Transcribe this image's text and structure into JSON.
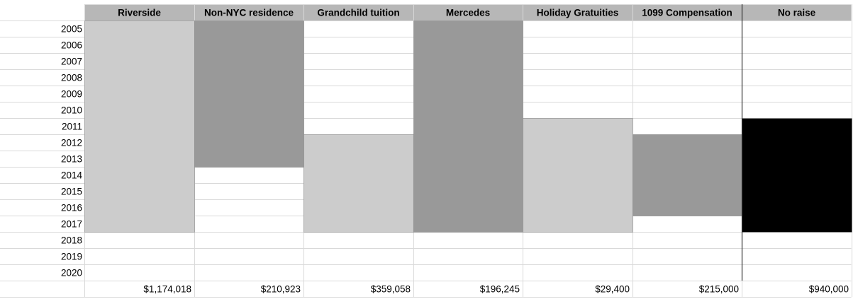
{
  "chart_data": {
    "type": "table",
    "years": [
      "2005",
      "2006",
      "2007",
      "2008",
      "2009",
      "2010",
      "2011",
      "2012",
      "2013",
      "2014",
      "2015",
      "2016",
      "2017",
      "2018",
      "2019",
      "2020"
    ],
    "columns": [
      {
        "label": "Riverside",
        "total": "$1,174,018",
        "start": 2005,
        "end": 2017,
        "color": "#cccccc"
      },
      {
        "label": "Non-NYC residence",
        "total": "$210,923",
        "start": 2005,
        "end": 2013,
        "color": "#999999"
      },
      {
        "label": "Grandchild tuition",
        "total": "$359,058",
        "start": 2012,
        "end": 2017,
        "color": "#cccccc"
      },
      {
        "label": "Mercedes",
        "total": "$196,245",
        "start": 2005,
        "end": 2017,
        "color": "#999999"
      },
      {
        "label": "Holiday Gratuities",
        "total": "$29,400",
        "start": 2011,
        "end": 2017,
        "color": "#cccccc"
      },
      {
        "label": "1099 Compensation",
        "total": "$215,000",
        "start": 2012,
        "end": 2016,
        "color": "#999999"
      },
      {
        "label": "No raise",
        "total": "$940,000",
        "start": 2011,
        "end": 2017,
        "color": "#000000"
      }
    ],
    "colors": {
      "header_bg": "#b7b7b7",
      "grid": "#d9d9d9",
      "separator": "#333333"
    }
  }
}
